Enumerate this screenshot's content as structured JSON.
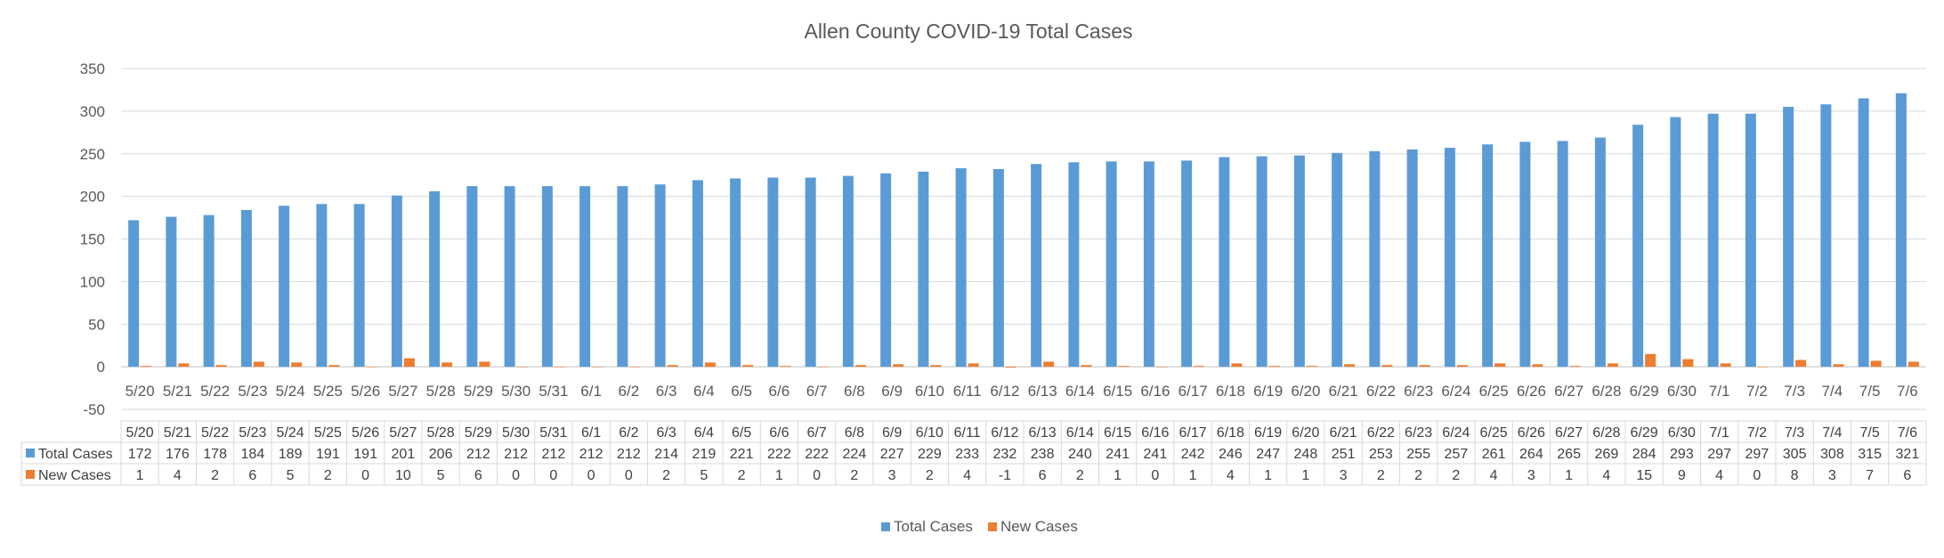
{
  "chart_data": {
    "type": "bar",
    "title": "Allen County COVID-19 Total Cases",
    "xlabel": "",
    "ylabel": "",
    "ylim": [
      -50,
      350
    ],
    "yticks": [
      -50,
      0,
      50,
      100,
      150,
      200,
      250,
      300,
      350
    ],
    "grid": true,
    "legend_position": "bottom",
    "data_table": true,
    "categories": [
      "5/20",
      "5/21",
      "5/22",
      "5/23",
      "5/24",
      "5/25",
      "5/26",
      "5/27",
      "5/28",
      "5/29",
      "5/30",
      "5/31",
      "6/1",
      "6/2",
      "6/3",
      "6/4",
      "6/5",
      "6/6",
      "6/7",
      "6/8",
      "6/9",
      "6/10",
      "6/11",
      "6/12",
      "6/13",
      "6/14",
      "6/15",
      "6/16",
      "6/17",
      "6/18",
      "6/19",
      "6/20",
      "6/21",
      "6/22",
      "6/23",
      "6/24",
      "6/25",
      "6/26",
      "6/27",
      "6/28",
      "6/29",
      "6/30",
      "7/1",
      "7/2",
      "7/3",
      "7/4",
      "7/5",
      "7/6"
    ],
    "series": [
      {
        "name": "Total Cases",
        "color": "#5B9BD5",
        "values": [
          172,
          176,
          178,
          184,
          189,
          191,
          191,
          201,
          206,
          212,
          212,
          212,
          212,
          212,
          214,
          219,
          221,
          222,
          222,
          224,
          227,
          229,
          233,
          232,
          238,
          240,
          241,
          241,
          242,
          246,
          247,
          248,
          251,
          253,
          255,
          257,
          261,
          264,
          265,
          269,
          284,
          293,
          297,
          297,
          305,
          308,
          315,
          321
        ]
      },
      {
        "name": "New Cases",
        "color": "#ED7D31",
        "values": [
          1,
          4,
          2,
          6,
          5,
          2,
          0,
          10,
          5,
          6,
          0,
          0,
          0,
          0,
          2,
          5,
          2,
          1,
          0,
          2,
          3,
          2,
          4,
          -1,
          6,
          2,
          1,
          0,
          1,
          4,
          1,
          1,
          3,
          2,
          2,
          2,
          4,
          3,
          1,
          4,
          15,
          9,
          4,
          0,
          8,
          3,
          7,
          6
        ]
      }
    ]
  }
}
